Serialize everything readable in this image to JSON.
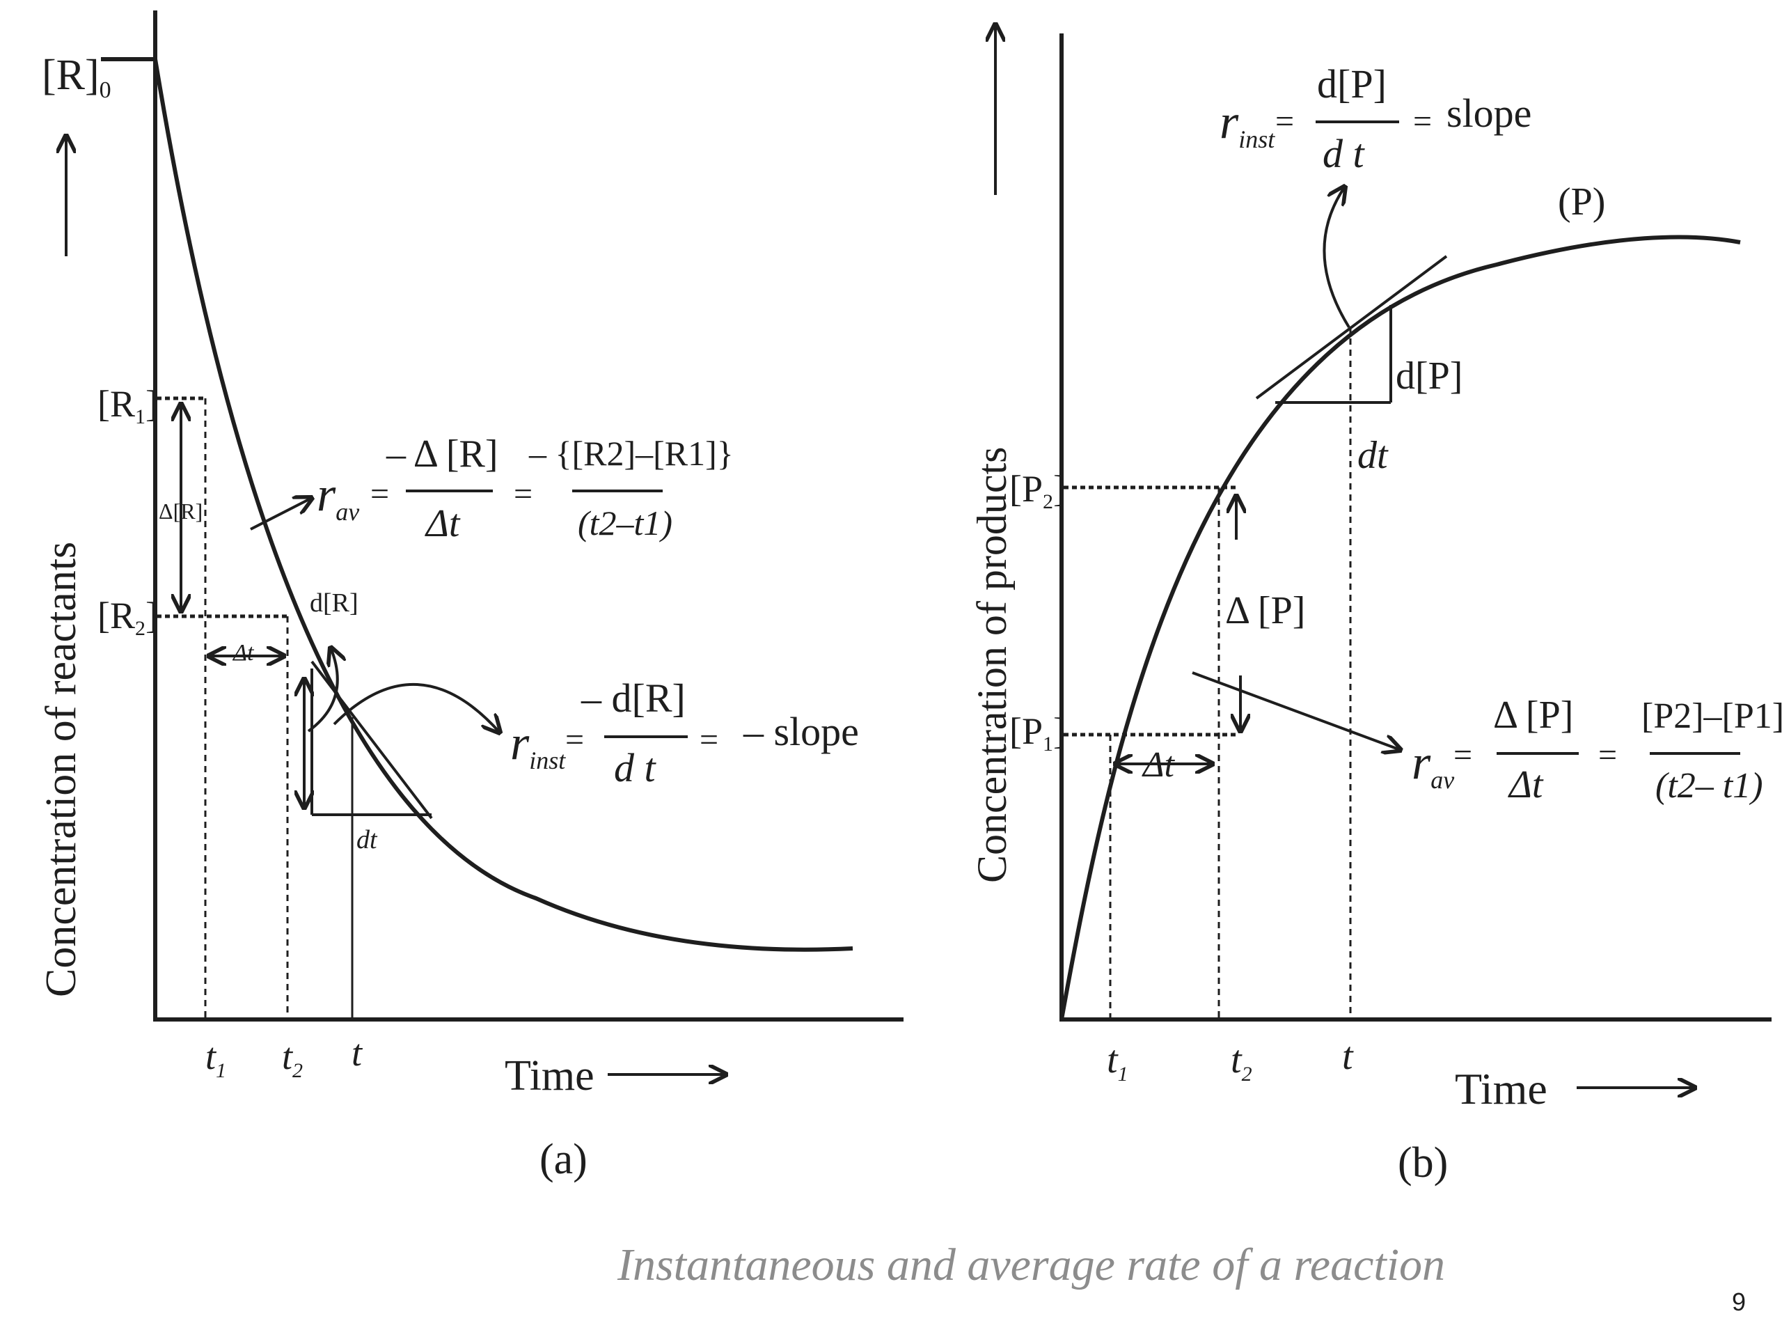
{
  "panel_a": {
    "caption": "(a)",
    "y_axis_label": "Concentration of reactants",
    "x_axis_label": "Time",
    "r0_main": "[R]",
    "r0_sub": "0",
    "r1_main": "[R",
    "r1_sub": "1",
    "r1_close": "]",
    "r2_main": "[R",
    "r2_sub": "2",
    "r2_close": "]",
    "delta_r": "Δ[R]",
    "delta_t": "Δt",
    "d_r": "d[R]",
    "dt": "dt",
    "t1_main": "t",
    "t1_sub": "1",
    "t2_main": "t",
    "t2_sub": "2",
    "t": "t",
    "rav_r": "r",
    "rav_sub": "av",
    "rav_eq1": "=",
    "rav_num": "– Δ [R]",
    "rav_den": "Δt",
    "rav_eq2": "=",
    "rav_num2": "– {[R2]–[R1]}",
    "rav_den2": "(t2–t1)",
    "rinst_r": "r",
    "rinst_sub": "inst",
    "rinst_eq1": "=",
    "rinst_num": "– d[R]",
    "rinst_den": "d t",
    "rinst_eq2": "=",
    "rinst_slope": "– slope"
  },
  "panel_b": {
    "caption": "(b)",
    "y_axis_label": "Concentration of products",
    "x_axis_label": "Time",
    "curve_label": "(P)",
    "p1_main": "[P",
    "p1_sub": "1",
    "p1_close": "]",
    "p2_main": "[P",
    "p2_sub": "2",
    "p2_close": "]",
    "delta_p": "Δ [P]",
    "delta_t": "Δt",
    "d_p": "d[P]",
    "dt": "dt",
    "t1_main": "t",
    "t1_sub": "1",
    "t2_main": "t",
    "t2_sub": "2",
    "t": "t",
    "rinst_r": "r",
    "rinst_sub": "inst",
    "rinst_eq1": "=",
    "rinst_num": "d[P]",
    "rinst_den": "d t",
    "rinst_eq2": "=",
    "rinst_slope": "slope",
    "rav_r": "r",
    "rav_sub": "av",
    "rav_eq1": "=",
    "rav_num": "Δ [P]",
    "rav_den": "Δt",
    "rav_eq2": "=",
    "rav_num2": "[P2]–[P1]",
    "rav_den2": "(t2– t1)"
  },
  "caption": "Instantaneous and average rate of a reaction",
  "page_number": "9"
}
